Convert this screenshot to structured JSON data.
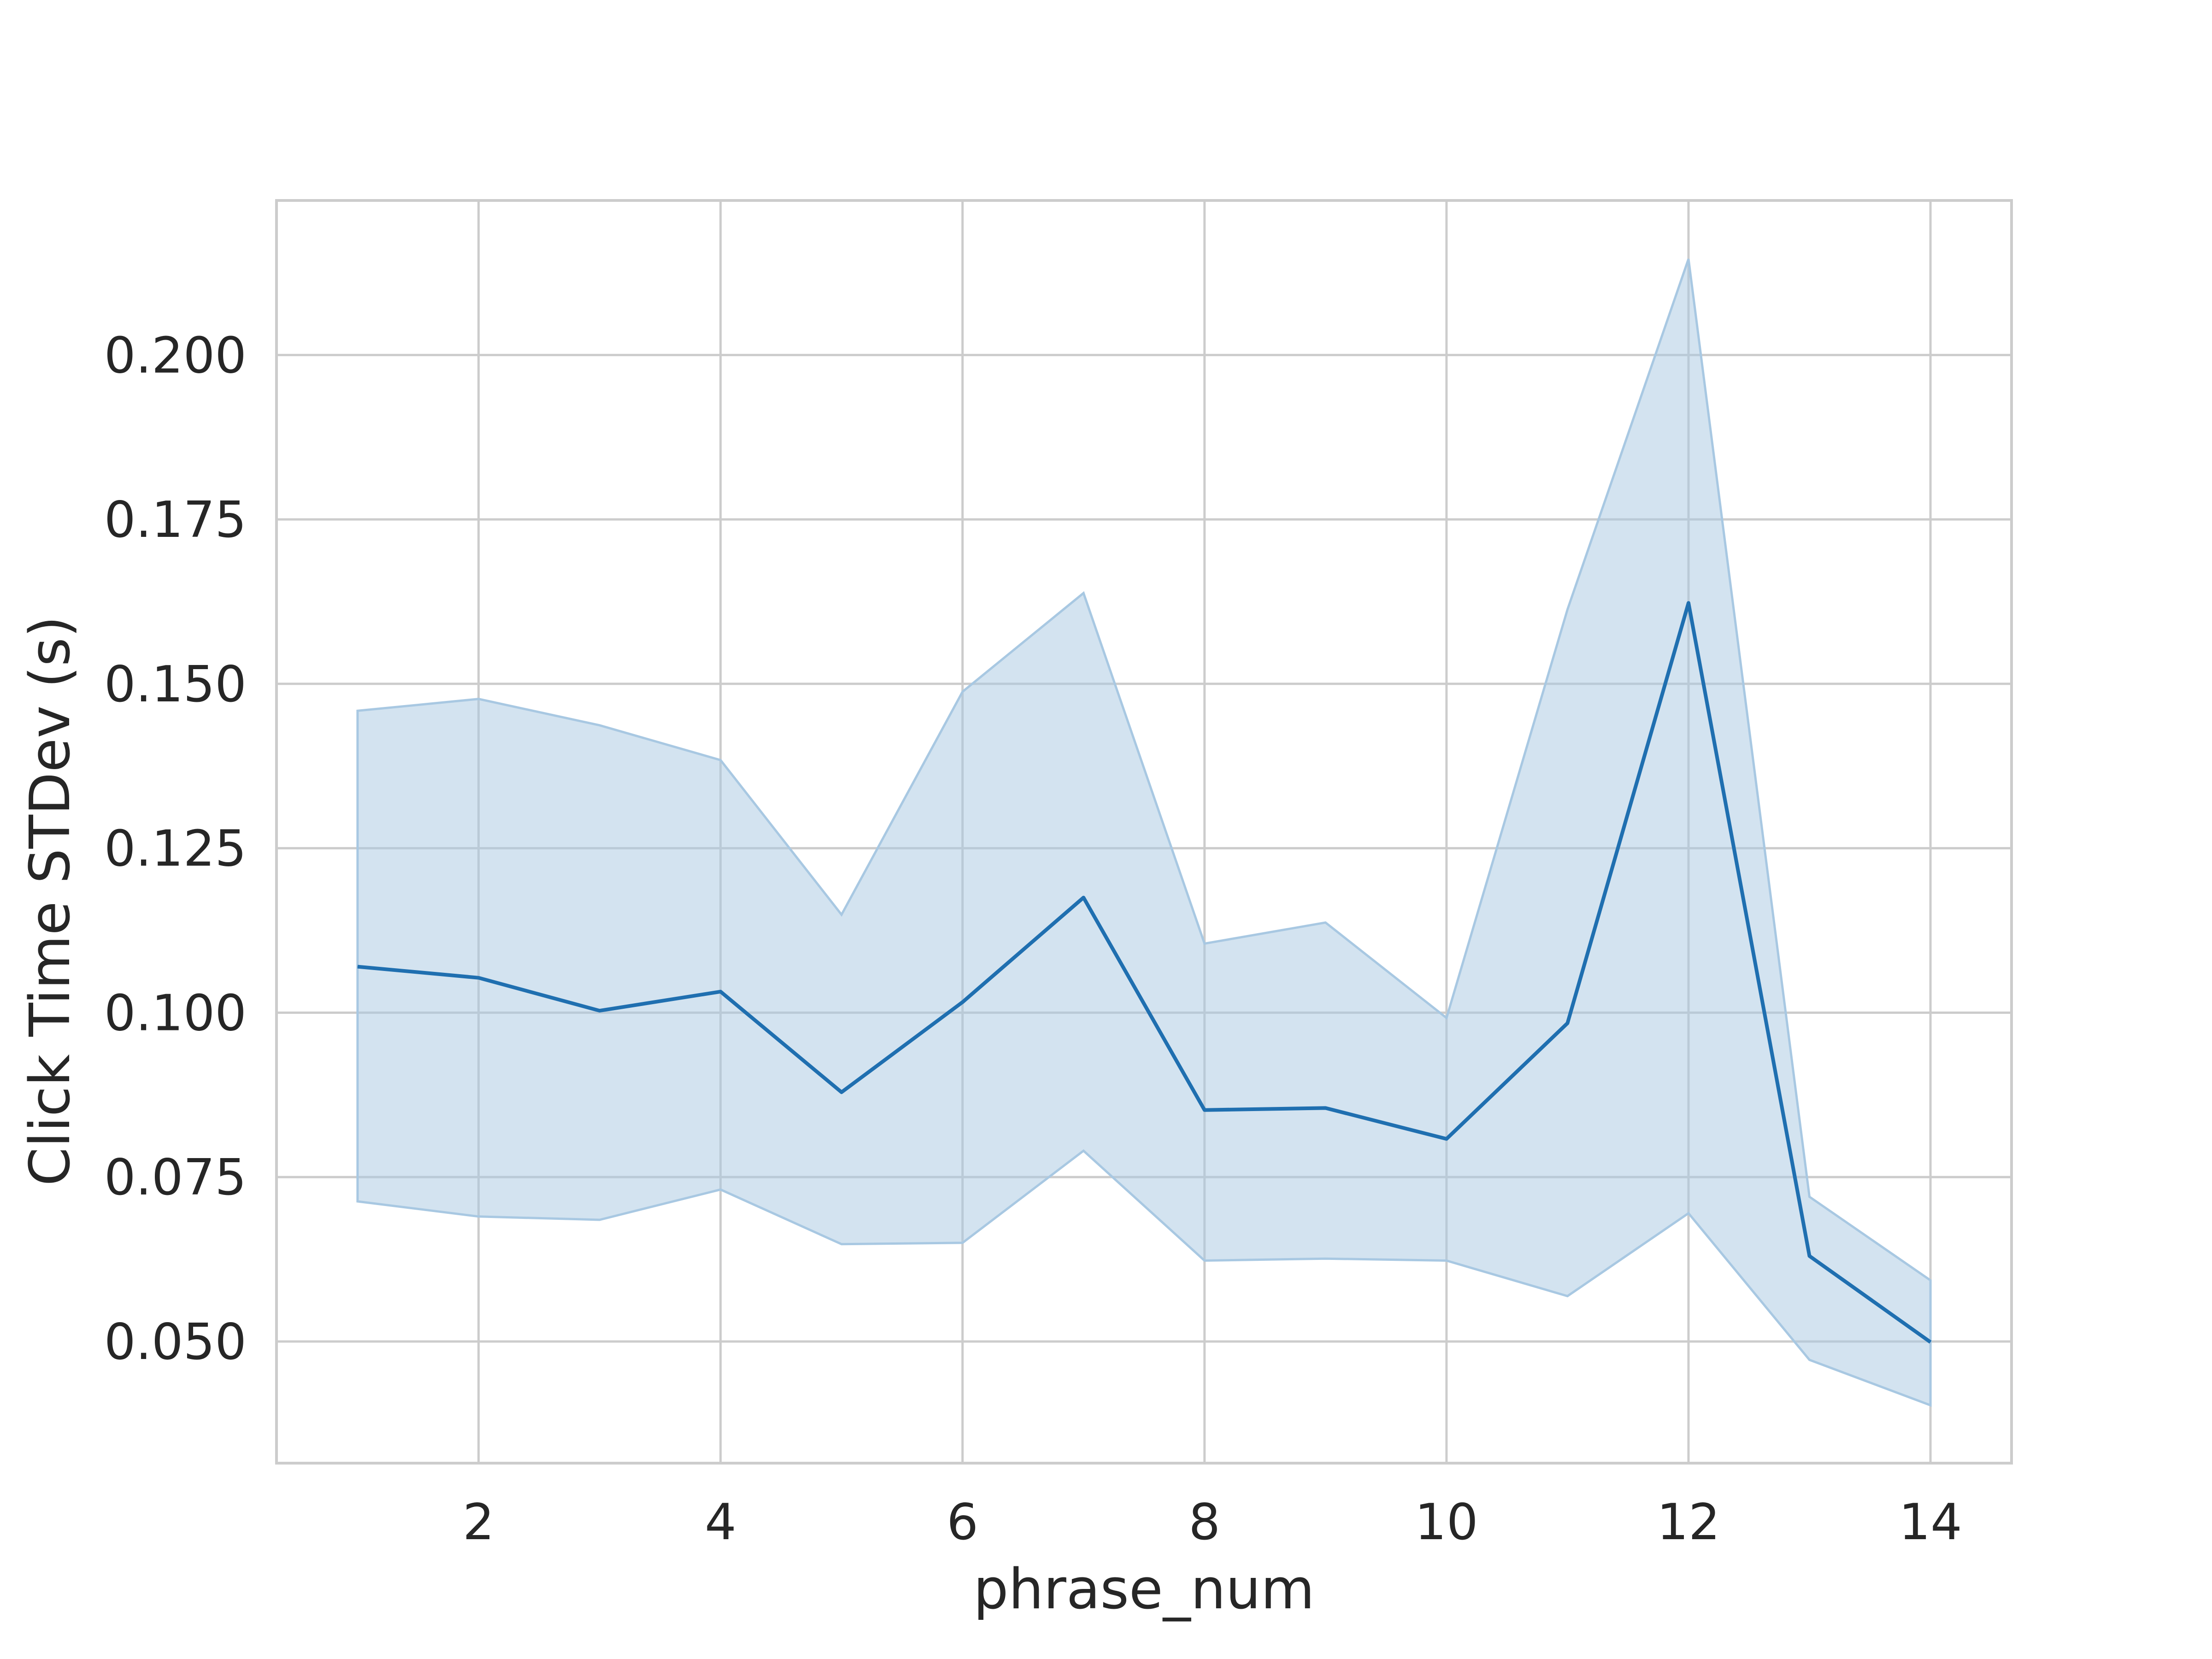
{
  "chart_data": {
    "type": "line",
    "xlabel": "phrase_num",
    "ylabel": "Click Time STDev (s)",
    "x": [
      1,
      2,
      3,
      4,
      5,
      6,
      7,
      8,
      9,
      10,
      11,
      12,
      13,
      14
    ],
    "series": [
      {
        "values": [
          0.107,
          0.1053,
          0.1003,
          0.1032,
          0.0879,
          0.1016,
          0.1175,
          0.0852,
          0.0855,
          0.0808,
          0.0984,
          0.1623,
          0.063,
          0.0499
        ],
        "ci_lower": [
          0.0713,
          0.069,
          0.0685,
          0.0731,
          0.0648,
          0.065,
          0.079,
          0.0623,
          0.0626,
          0.0623,
          0.0569,
          0.0695,
          0.0472,
          0.0403
        ],
        "ci_upper": [
          0.1459,
          0.1477,
          0.1437,
          0.1384,
          0.1149,
          0.1488,
          0.1638,
          0.1105,
          0.1137,
          0.0992,
          0.1613,
          0.2146,
          0.072,
          0.0593
        ]
      }
    ],
    "xlim": [
      0.33,
      14.67
    ],
    "ylim": [
      0.0315,
      0.2235
    ],
    "xticks": [
      "2",
      "4",
      "6",
      "8",
      "10",
      "12",
      "14"
    ],
    "xtick_values": [
      2,
      4,
      6,
      8,
      10,
      12,
      14
    ],
    "yticks": [
      "0.050",
      "0.075",
      "0.100",
      "0.125",
      "0.150",
      "0.175",
      "0.200"
    ],
    "ytick_values": [
      0.05,
      0.075,
      0.1,
      0.125,
      0.15,
      0.175,
      0.2
    ],
    "grid": true,
    "colors": {
      "line": "#1f6fb0",
      "band": "#a8c8e2",
      "grid": "#cccccc",
      "text": "#262626"
    }
  }
}
